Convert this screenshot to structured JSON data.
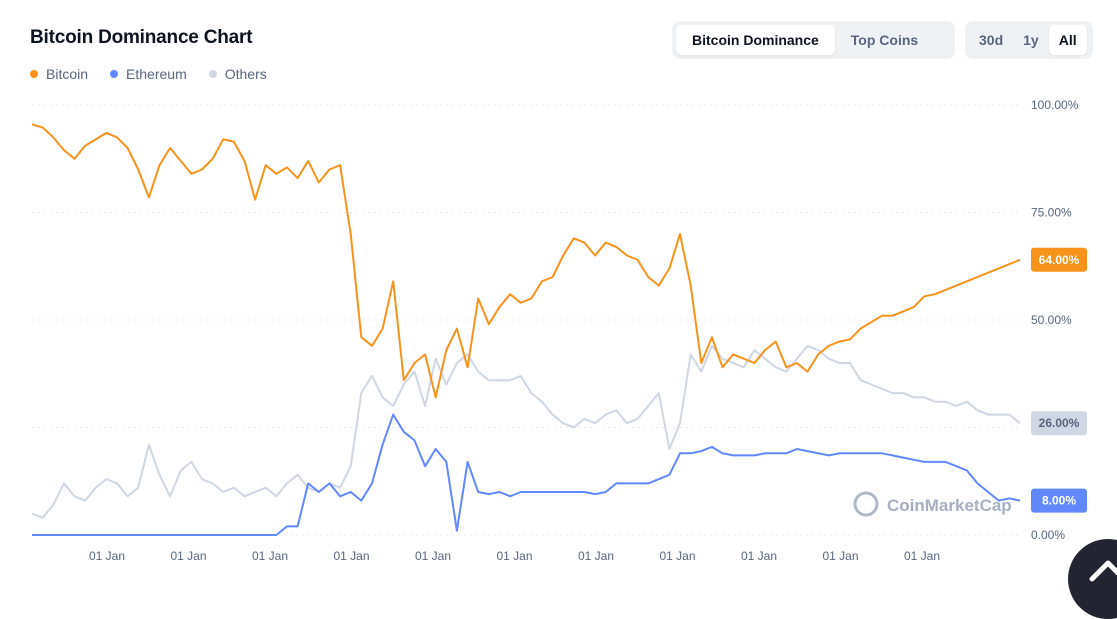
{
  "header": {
    "title": "Bitcoin Dominance Chart"
  },
  "view_tabs": [
    {
      "label": "Bitcoin Dominance",
      "active": true
    },
    {
      "label": "Top Coins",
      "active": false
    }
  ],
  "range_tabs": [
    {
      "label": "30d",
      "active": false
    },
    {
      "label": "1y",
      "active": false
    },
    {
      "label": "All",
      "active": true
    }
  ],
  "watermark": "CoinMarketCap",
  "colors": {
    "bitcoin": "#f7931a",
    "ethereum": "#6188ff",
    "others": "#cfd6e4"
  },
  "chart_data": {
    "type": "line",
    "title": "Bitcoin Dominance Chart",
    "x_tick_labels": [
      "01 Jan",
      "01 Jan",
      "01 Jan",
      "01 Jan",
      "01 Jan",
      "01 Jan",
      "01 Jan",
      "01 Jan",
      "01 Jan",
      "01 Jan",
      "01 Jan"
    ],
    "y_tick_labels": [
      "100.00%",
      "75.00%",
      "50.00%",
      "25.00%",
      "0.00%"
    ],
    "ylim": [
      0,
      100
    ],
    "grid": true,
    "legend": "top-left",
    "series": [
      {
        "name": "Bitcoin",
        "color": "#f7931a",
        "last_label": "64.00%",
        "values": [
          95.5,
          94.8,
          92.5,
          89.5,
          87.5,
          90.5,
          92,
          93.5,
          92.5,
          90,
          85,
          78.5,
          86,
          90,
          87,
          84,
          85,
          87.5,
          92,
          91.5,
          87,
          78,
          86,
          84,
          85.5,
          83,
          87,
          82,
          85,
          86,
          70,
          46,
          44,
          48,
          59,
          36,
          40,
          42,
          32,
          43,
          48,
          39,
          55,
          49,
          53,
          56,
          54,
          55,
          59,
          60,
          65,
          69,
          68,
          65,
          68,
          67,
          65,
          64,
          60,
          58,
          62,
          70,
          58,
          40,
          46,
          39,
          42,
          41,
          40,
          43,
          45,
          39,
          40,
          38,
          42,
          44,
          45,
          45.5,
          48,
          49.5,
          51,
          51,
          52,
          53,
          55.5,
          56,
          57,
          58,
          59,
          60,
          61,
          62,
          63,
          64
        ]
      },
      {
        "name": "Ethereum",
        "color": "#6188ff",
        "last_label": "8.00%",
        "values": [
          0,
          0,
          0,
          0,
          0,
          0,
          0,
          0,
          0,
          0,
          0,
          0,
          0,
          0,
          0,
          0,
          0,
          0,
          0,
          0,
          0,
          0,
          0,
          0,
          2,
          2,
          12,
          10,
          12,
          9,
          10,
          8,
          12,
          21,
          28,
          24,
          22,
          16,
          20,
          17,
          1,
          17,
          10,
          9.5,
          10,
          9,
          10,
          10,
          10,
          10,
          10,
          10,
          10,
          9.5,
          10,
          12,
          12,
          12,
          12,
          13,
          14,
          19,
          19,
          19.5,
          20.5,
          19,
          18.5,
          18.5,
          18.5,
          19,
          19,
          19,
          20,
          19.5,
          19,
          18.5,
          19,
          19,
          19,
          19,
          19,
          18.5,
          18,
          17.5,
          17,
          17,
          17,
          16,
          15,
          12,
          10,
          8,
          8.5,
          8
        ]
      },
      {
        "name": "Others",
        "color": "#cfd6e4",
        "last_label": "26.00%",
        "values": [
          5,
          4,
          7,
          12,
          9,
          8,
          11,
          13,
          12,
          9,
          11,
          21,
          14,
          9,
          15,
          17,
          13,
          12,
          10,
          11,
          9,
          10,
          11,
          9,
          12,
          14,
          11,
          10,
          12,
          11,
          16,
          33,
          37,
          32,
          30,
          35,
          38,
          30,
          41,
          35,
          40,
          42,
          38,
          36,
          36,
          36,
          37,
          33,
          31,
          28,
          26,
          25,
          27,
          26,
          28,
          29,
          26,
          27,
          30,
          33,
          20,
          26,
          42,
          38,
          44,
          41,
          40,
          39,
          43,
          41,
          39,
          38,
          41,
          44,
          43,
          41,
          40,
          40,
          36,
          35,
          34,
          33,
          33,
          32,
          32,
          31,
          31,
          30,
          31,
          29,
          28,
          28,
          28,
          26
        ]
      }
    ]
  },
  "scroll_top": {
    "icon": "chevron-up-icon"
  }
}
